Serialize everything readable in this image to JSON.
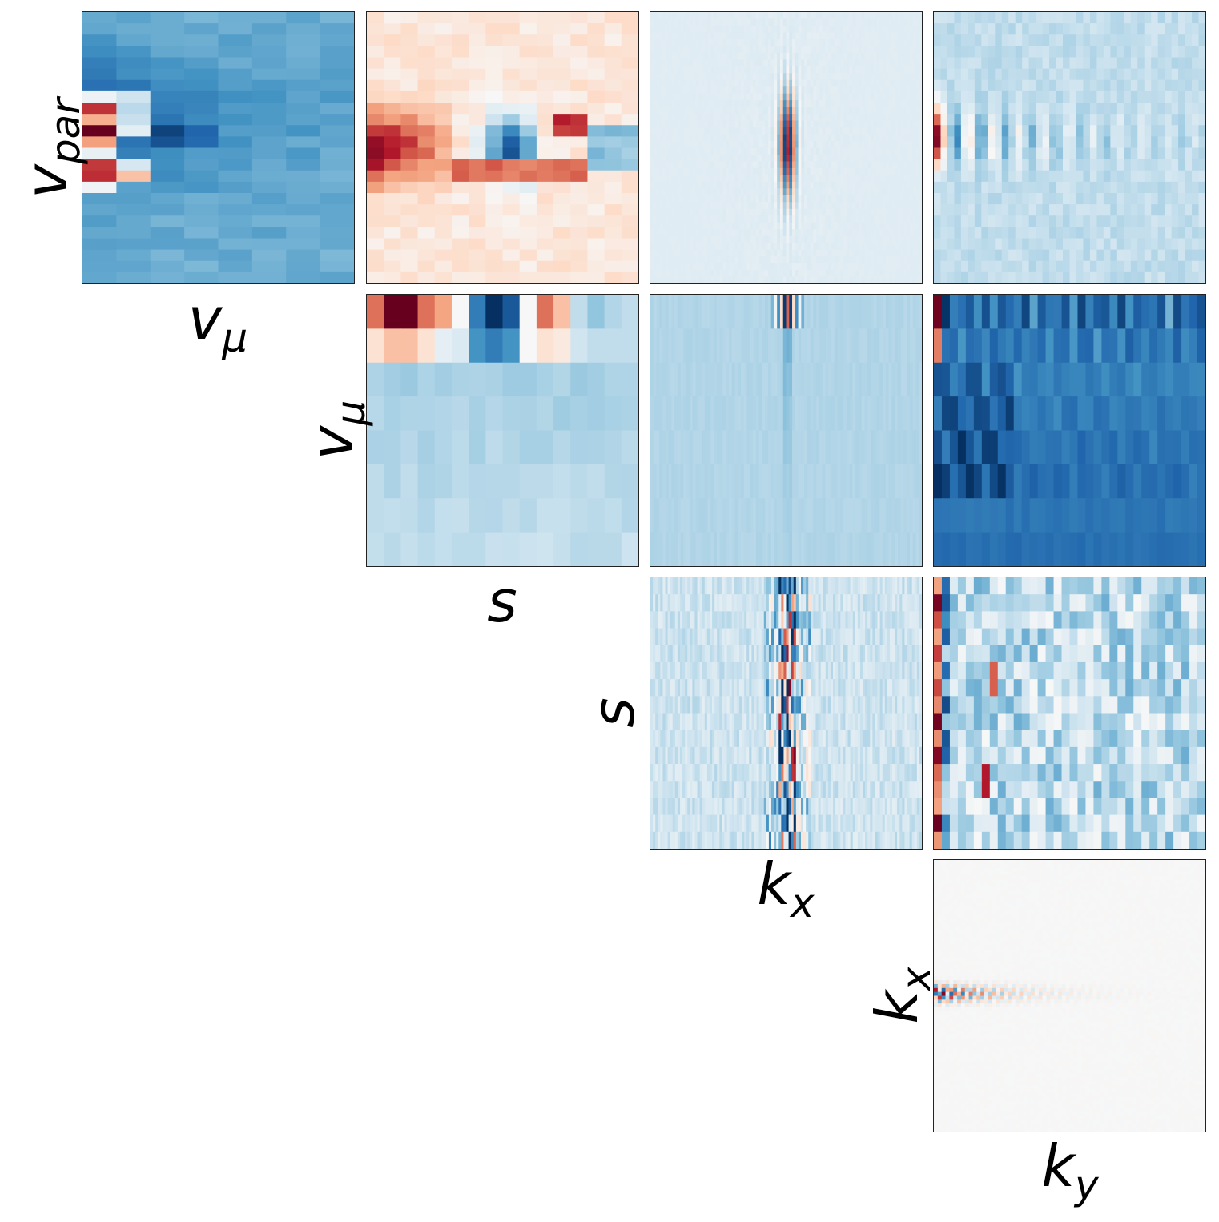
{
  "chart_data": [
    {
      "type": "heatmap",
      "id": "p11",
      "row": 0,
      "col": 0,
      "xlabel": {
        "main": "v",
        "sub": "μ"
      },
      "ylabel": {
        "main": "v",
        "sub": "par"
      },
      "grid": false
    },
    {
      "type": "heatmap",
      "id": "p12",
      "row": 0,
      "col": 1,
      "xlabel": {
        "main": "",
        "sub": ""
      },
      "ylabel": {
        "main": "",
        "sub": ""
      },
      "grid": false
    },
    {
      "type": "heatmap",
      "id": "p13",
      "row": 0,
      "col": 2,
      "xlabel": {
        "main": "",
        "sub": ""
      },
      "ylabel": {
        "main": "",
        "sub": ""
      },
      "grid": false
    },
    {
      "type": "heatmap",
      "id": "p14",
      "row": 0,
      "col": 3,
      "xlabel": {
        "main": "",
        "sub": ""
      },
      "ylabel": {
        "main": "",
        "sub": ""
      },
      "grid": false
    },
    {
      "type": "heatmap",
      "id": "p22",
      "row": 1,
      "col": 1,
      "xlabel": {
        "main": "s",
        "sub": ""
      },
      "ylabel": {
        "main": "v",
        "sub": "μ"
      },
      "grid": false
    },
    {
      "type": "heatmap",
      "id": "p23",
      "row": 1,
      "col": 2,
      "xlabel": {
        "main": "",
        "sub": ""
      },
      "ylabel": {
        "main": "",
        "sub": ""
      },
      "grid": false
    },
    {
      "type": "heatmap",
      "id": "p24",
      "row": 1,
      "col": 3,
      "xlabel": {
        "main": "",
        "sub": ""
      },
      "ylabel": {
        "main": "",
        "sub": ""
      },
      "grid": false
    },
    {
      "type": "heatmap",
      "id": "p33",
      "row": 2,
      "col": 2,
      "xlabel": {
        "main": "k",
        "sub": "x"
      },
      "ylabel": {
        "main": "s",
        "sub": ""
      },
      "grid": false
    },
    {
      "type": "heatmap",
      "id": "p34",
      "row": 2,
      "col": 3,
      "xlabel": {
        "main": "",
        "sub": ""
      },
      "ylabel": {
        "main": "",
        "sub": ""
      },
      "grid": false
    },
    {
      "type": "heatmap",
      "id": "p44",
      "row": 3,
      "col": 3,
      "xlabel": {
        "main": "k",
        "sub": "y"
      },
      "ylabel": {
        "main": "k",
        "sub": "x"
      },
      "grid": false
    }
  ],
  "colormap": {
    "name": "RdBu_r",
    "stops": [
      "#053061",
      "#2166ac",
      "#4393c3",
      "#92c5de",
      "#d1e5f0",
      "#f7f7f7",
      "#fddbc7",
      "#f4a582",
      "#d6604d",
      "#b2182b",
      "#67001f"
    ]
  }
}
